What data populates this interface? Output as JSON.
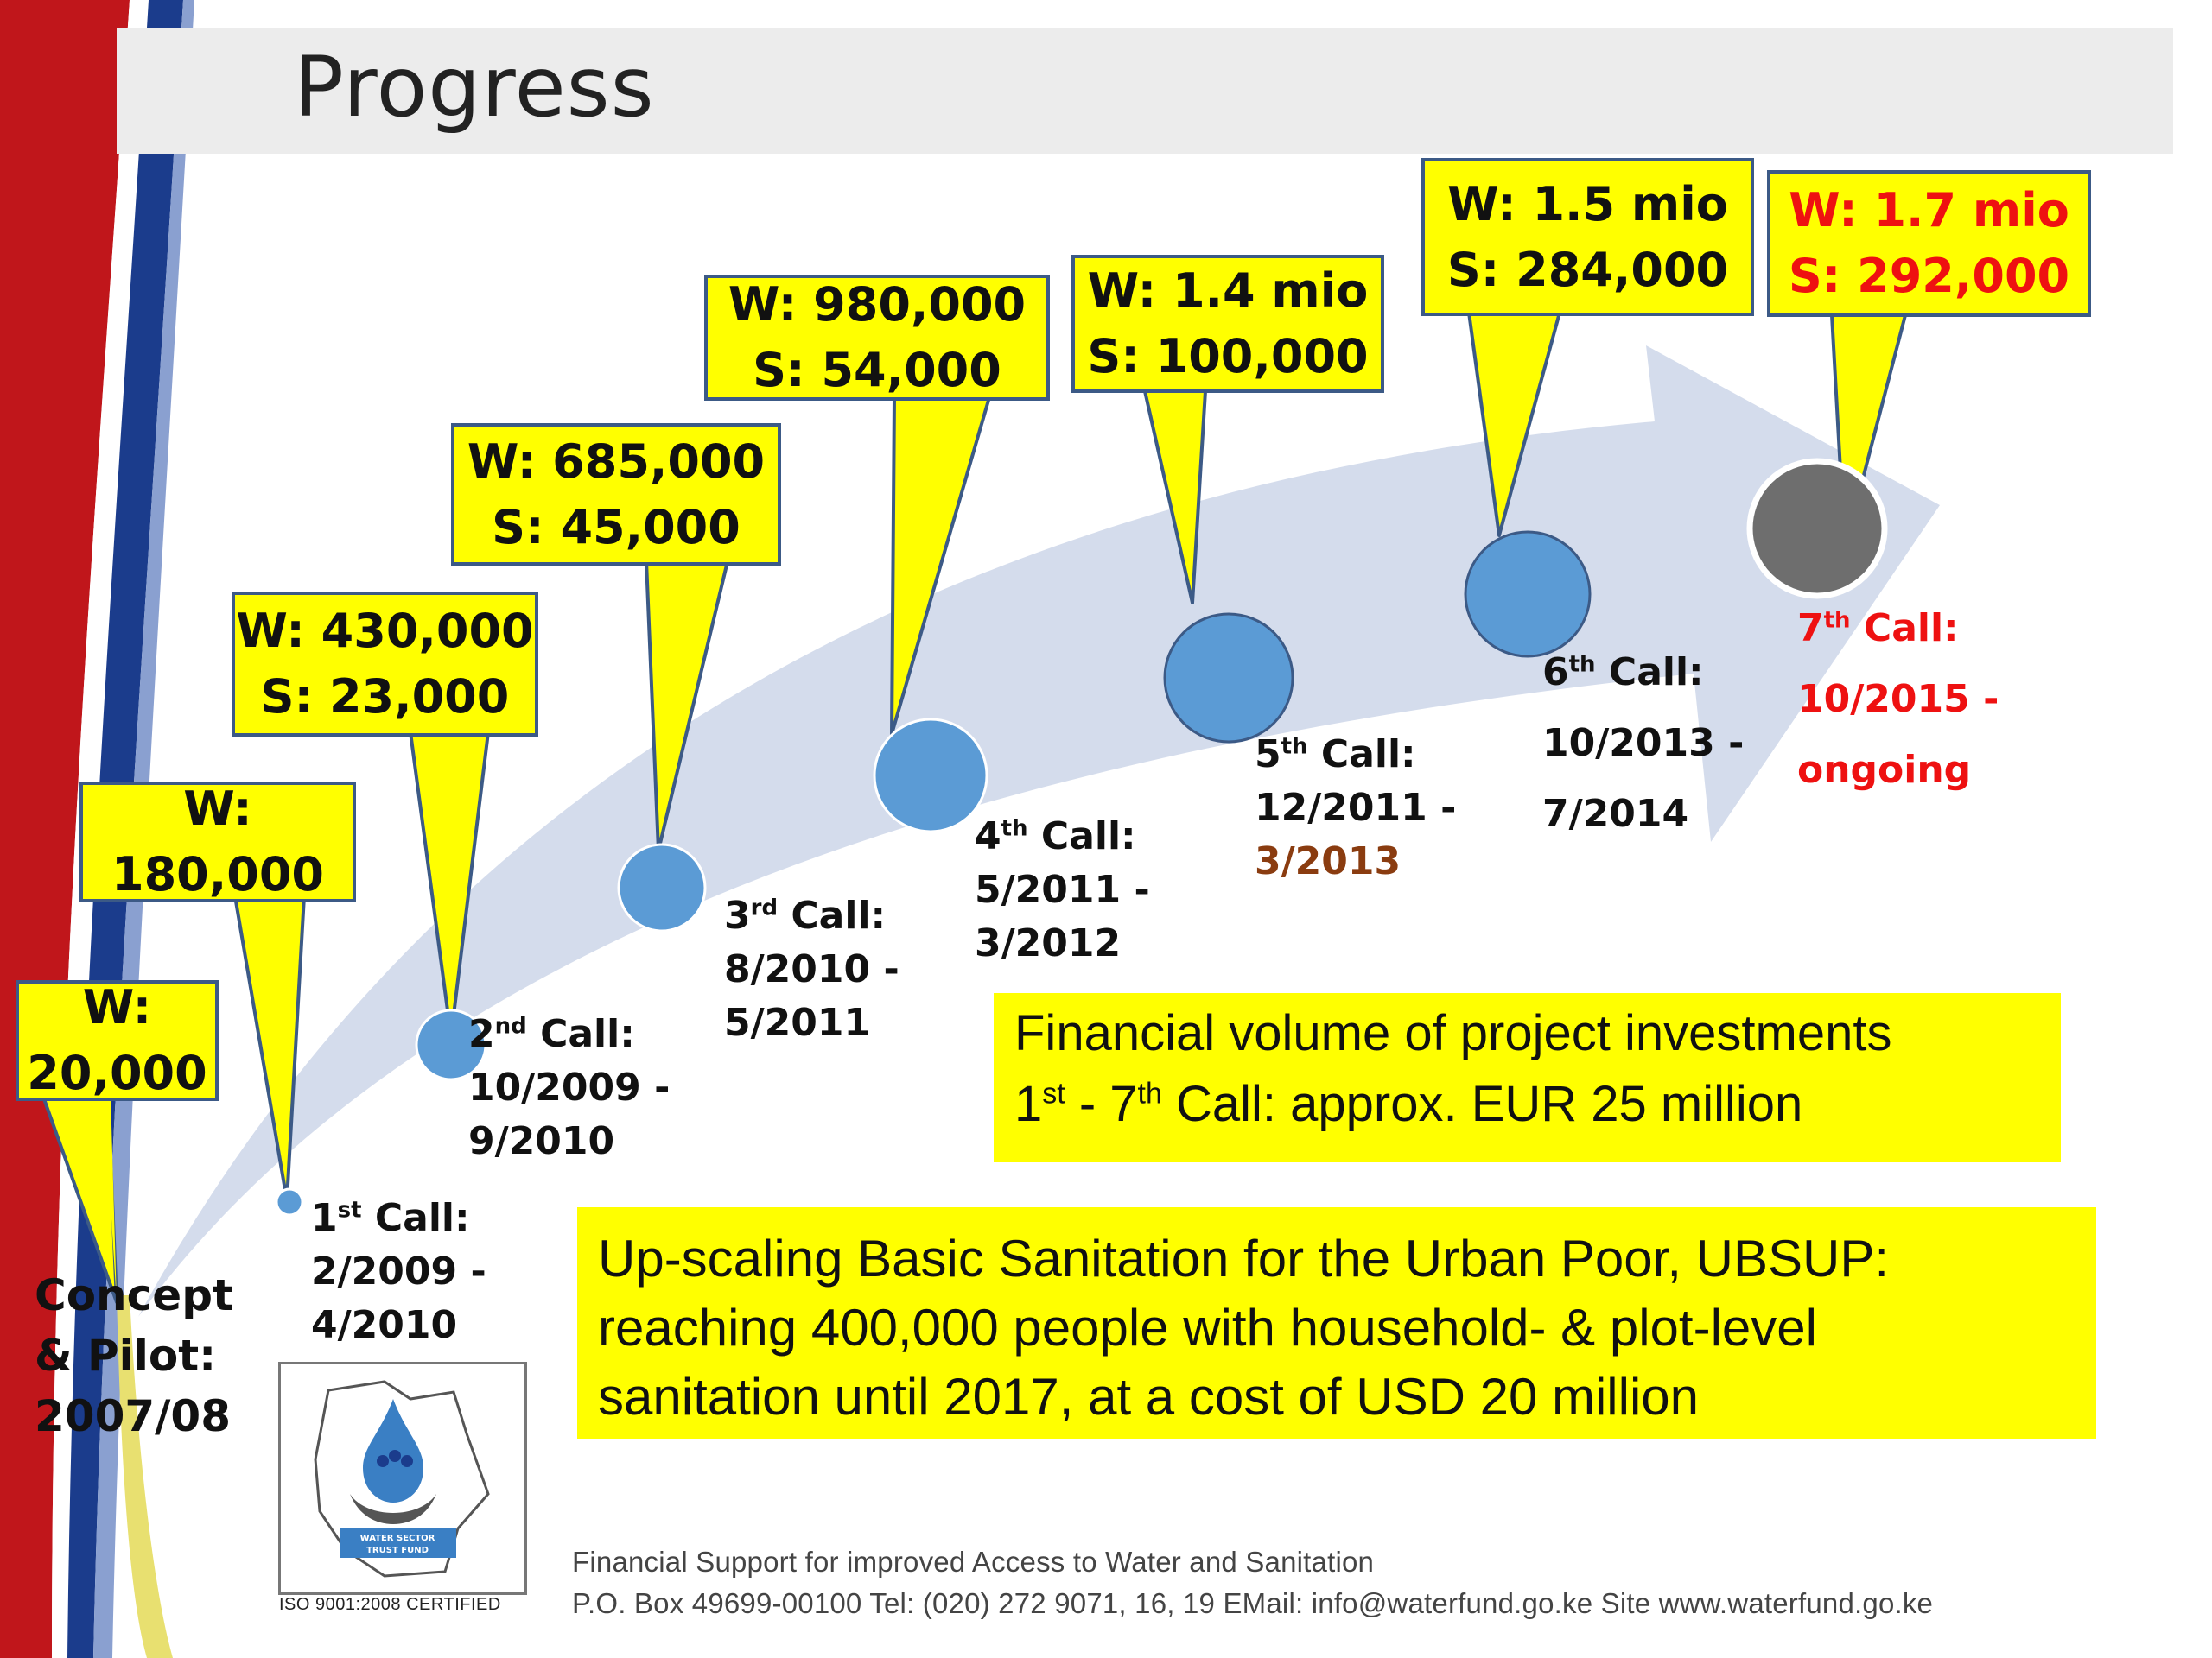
{
  "slide": {
    "title": "Progress",
    "callouts": [
      {
        "w": "W:",
        "s": "20,000"
      },
      {
        "w": "W:",
        "s": "180,000"
      },
      {
        "w": "W: 430,000",
        "s": "S:  23,000"
      },
      {
        "w": "W:  685,000",
        "s": "S:  45,000"
      },
      {
        "w": "W:  980,000",
        "s": "S:  54,000"
      },
      {
        "w": "W:  1.4 mio",
        "s": "S:  100,000"
      },
      {
        "w": "W:  1.5 mio",
        "s": "S:  284,000"
      },
      {
        "w": "W:  1.7 mio",
        "s": "S:  292,000"
      }
    ],
    "stages": [
      {
        "l1": "Concept",
        "l2": "& Pilot:",
        "l3": "2007/08"
      },
      {
        "num": "1",
        "ord": "st",
        "call": " Call:",
        "start": "2/2009 -",
        "end": "4/2010"
      },
      {
        "num": "2",
        "ord": "nd",
        "call": " Call:",
        "start": "10/2009 -",
        "end": "9/2010"
      },
      {
        "num": "3",
        "ord": "rd",
        "call": " Call:",
        "start": "8/2010 -",
        "end": "5/2011"
      },
      {
        "num": "4",
        "ord": "th",
        "call": " Call:",
        "start": "5/2011 -",
        "end": "3/2012"
      },
      {
        "num": "5",
        "ord": "th",
        "call": " Call:",
        "start": "12/2011 -",
        "end": "3/2013"
      },
      {
        "num": "6",
        "ord": "th",
        "call": " Call:",
        "start": "10/2013 -",
        "end": "7/2014"
      },
      {
        "num": "7",
        "ord": "th",
        "call": " Call:",
        "start": "10/2015 -",
        "end": "ongoing"
      }
    ],
    "finance": {
      "line1": "Financial volume of project investments",
      "l2_a": "1",
      "l2_a_sup": "st",
      "l2_b": " - 7",
      "l2_b_sup": "th",
      "l2_c": " Call: approx. EUR 25 million"
    },
    "ubsup": {
      "line1": "Up-scaling Basic Sanitation for the Urban Poor, UBSUP:",
      "line2": "reaching 400,000 people with household- & plot-level",
      "line3": "sanitation until 2017, at a cost of USD 20 million"
    },
    "footer": {
      "line1": "Financial Support for improved Access to Water and Sanitation",
      "line2": "P.O. Box 49699-00100 Tel: (020) 272 9071, 16, 19 EMail: info@waterfund.go.ke Site www.waterfund.go.ke"
    },
    "logo": {
      "text1": "WATER SECTOR",
      "text2": "TRUST FUND",
      "iso": "ISO 9001:2008 CERTIFIED"
    },
    "colors": {
      "callout_fill": "#ffff00",
      "callout_border": "#3c5a86",
      "node": "#5b9bd5",
      "node_final": "#6e6e6e",
      "arrow": "#d4dcec",
      "highlight_red": "#ee1111",
      "brown": "#8a3c10"
    }
  }
}
